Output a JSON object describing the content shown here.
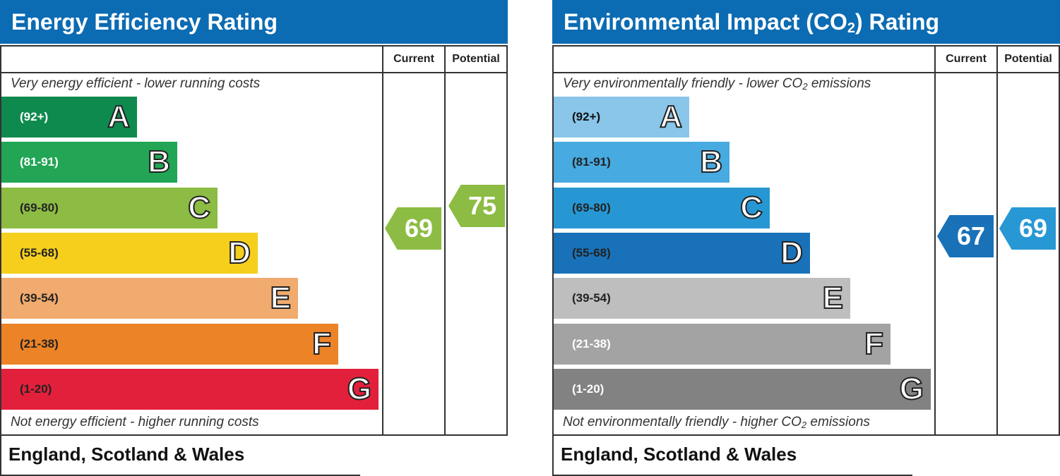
{
  "charts": [
    {
      "title_main": "Energy Efficiency Rating",
      "title_sub": "",
      "title_end": "",
      "columns": {
        "current": "Current",
        "potential": "Potential"
      },
      "top_note": {
        "text": "Very energy efficient - lower running costs",
        "sub": "",
        "end": ""
      },
      "bottom_note": {
        "text": "Not energy efficient - higher running costs",
        "sub": "",
        "end": ""
      },
      "footer": "England, Scotland & Wales",
      "current_color": "#8cbc43",
      "potential_color": "#8cbc43",
      "bands": [
        {
          "letter": "A",
          "range": "(92+)",
          "color": "#0f8a4e",
          "text_color": "#ffffff"
        },
        {
          "letter": "B",
          "range": "(81-91)",
          "color": "#22a554",
          "text_color": "#ffffff"
        },
        {
          "letter": "C",
          "range": "(69-80)",
          "color": "#8cbc43",
          "text_color": "#222222"
        },
        {
          "letter": "D",
          "range": "(55-68)",
          "color": "#f6cf1c",
          "text_color": "#222222"
        },
        {
          "letter": "E",
          "range": "(39-54)",
          "color": "#f1ab6e",
          "text_color": "#222222"
        },
        {
          "letter": "F",
          "range": "(21-38)",
          "color": "#ec8327",
          "text_color": "#222222"
        },
        {
          "letter": "G",
          "range": "(1-20)",
          "color": "#e3203b",
          "text_color": "#222222"
        }
      ]
    },
    {
      "title_main": "Environmental Impact (CO",
      "title_sub": "2",
      "title_end": ") Rating",
      "columns": {
        "current": "Current",
        "potential": "Potential"
      },
      "top_note": {
        "text": "Very environmentally friendly - lower CO",
        "sub": "2",
        "end": " emissions"
      },
      "bottom_note": {
        "text": "Not environmentally friendly - higher CO",
        "sub": "2",
        "end": " emissions"
      },
      "footer": "England, Scotland & Wales",
      "current_color": "#1971b8",
      "potential_color": "#2798d4",
      "bands": [
        {
          "letter": "A",
          "range": "(92+)",
          "color": "#8ac6ea",
          "text_color": "#111111"
        },
        {
          "letter": "B",
          "range": "(81-91)",
          "color": "#47aae0",
          "text_color": "#222222"
        },
        {
          "letter": "C",
          "range": "(69-80)",
          "color": "#2797d4",
          "text_color": "#222222"
        },
        {
          "letter": "D",
          "range": "(55-68)",
          "color": "#1972b9",
          "text_color": "#222222"
        },
        {
          "letter": "E",
          "range": "(39-54)",
          "color": "#bebebe",
          "text_color": "#222222"
        },
        {
          "letter": "F",
          "range": "(21-38)",
          "color": "#a3a3a3",
          "text_color": "#ffffff"
        },
        {
          "letter": "G",
          "range": "(1-20)",
          "color": "#828282",
          "text_color": "#ffffff"
        }
      ]
    }
  ],
  "chart_data": [
    {
      "type": "bar",
      "title": "Energy Efficiency Rating",
      "categories": [
        "A",
        "B",
        "C",
        "D",
        "E",
        "F",
        "G"
      ],
      "ranges": [
        "(92+)",
        "(81-91)",
        "(69-80)",
        "(55-68)",
        "(39-54)",
        "(21-38)",
        "(1-20)"
      ],
      "current": 69,
      "potential": 75
    },
    {
      "type": "bar",
      "title": "Environmental Impact (CO2) Rating",
      "categories": [
        "A",
        "B",
        "C",
        "D",
        "E",
        "F",
        "G"
      ],
      "ranges": [
        "(92+)",
        "(81-91)",
        "(69-80)",
        "(55-68)",
        "(39-54)",
        "(21-38)",
        "(1-20)"
      ],
      "current": 67,
      "potential": 69
    }
  ]
}
